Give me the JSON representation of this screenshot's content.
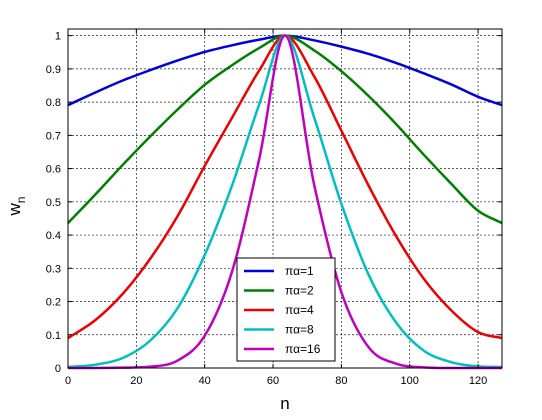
{
  "chart_data": {
    "type": "line",
    "title": "",
    "xlabel": "n",
    "ylabel": "w_n",
    "ylabel_main": "w",
    "ylabel_sub": "n",
    "xlim": [
      0,
      127
    ],
    "ylim": [
      0,
      1.02
    ],
    "x_ticks": [
      0,
      20,
      40,
      60,
      80,
      100,
      120
    ],
    "y_ticks": [
      0,
      0.1,
      0.2,
      0.3,
      0.4,
      0.5,
      0.6,
      0.7,
      0.8,
      0.9,
      1
    ],
    "x_tick_labels": [
      "0",
      "20",
      "40",
      "60",
      "80",
      "100",
      "120"
    ],
    "y_tick_labels": [
      "0",
      "0.1",
      "0.2",
      "0.3",
      "0.4",
      "0.5",
      "0.6",
      "0.7",
      "0.8",
      "0.9",
      "1"
    ],
    "grid": true,
    "legend_position": "bottom-center",
    "x": [
      0,
      8,
      16,
      24,
      32,
      40,
      48,
      56,
      63.5,
      72,
      80,
      88,
      96,
      104,
      112,
      120,
      127
    ],
    "series": [
      {
        "name": "πα=1",
        "color": "#0000dd",
        "values": [
          0.791,
          0.829,
          0.865,
          0.896,
          0.925,
          0.951,
          0.971,
          0.988,
          1.0,
          0.986,
          0.967,
          0.945,
          0.918,
          0.887,
          0.854,
          0.816,
          0.791
        ]
      },
      {
        "name": "πα=2",
        "color": "#007f00",
        "values": [
          0.436,
          0.522,
          0.611,
          0.696,
          0.777,
          0.852,
          0.911,
          0.963,
          1.0,
          0.956,
          0.893,
          0.818,
          0.734,
          0.643,
          0.556,
          0.473,
          0.436
        ]
      },
      {
        "name": "πα=4",
        "color": "#ee0000",
        "values": [
          0.09,
          0.144,
          0.223,
          0.328,
          0.456,
          0.608,
          0.753,
          0.896,
          1.0,
          0.878,
          0.714,
          0.548,
          0.397,
          0.27,
          0.175,
          0.108,
          0.09
        ]
      },
      {
        "name": "πα=8",
        "color": "#00bfbf",
        "values": [
          0.003,
          0.01,
          0.03,
          0.082,
          0.179,
          0.34,
          0.549,
          0.795,
          1.0,
          0.755,
          0.494,
          0.28,
          0.137,
          0.053,
          0.018,
          0.005,
          0.003
        ]
      },
      {
        "name": "πα=16",
        "color": "#bf00bf",
        "values": [
          0.0,
          0.0,
          0.001,
          0.004,
          0.022,
          0.097,
          0.29,
          0.631,
          1.0,
          0.553,
          0.228,
          0.062,
          0.013,
          0.002,
          0.0,
          0.0,
          0.0
        ]
      }
    ]
  }
}
